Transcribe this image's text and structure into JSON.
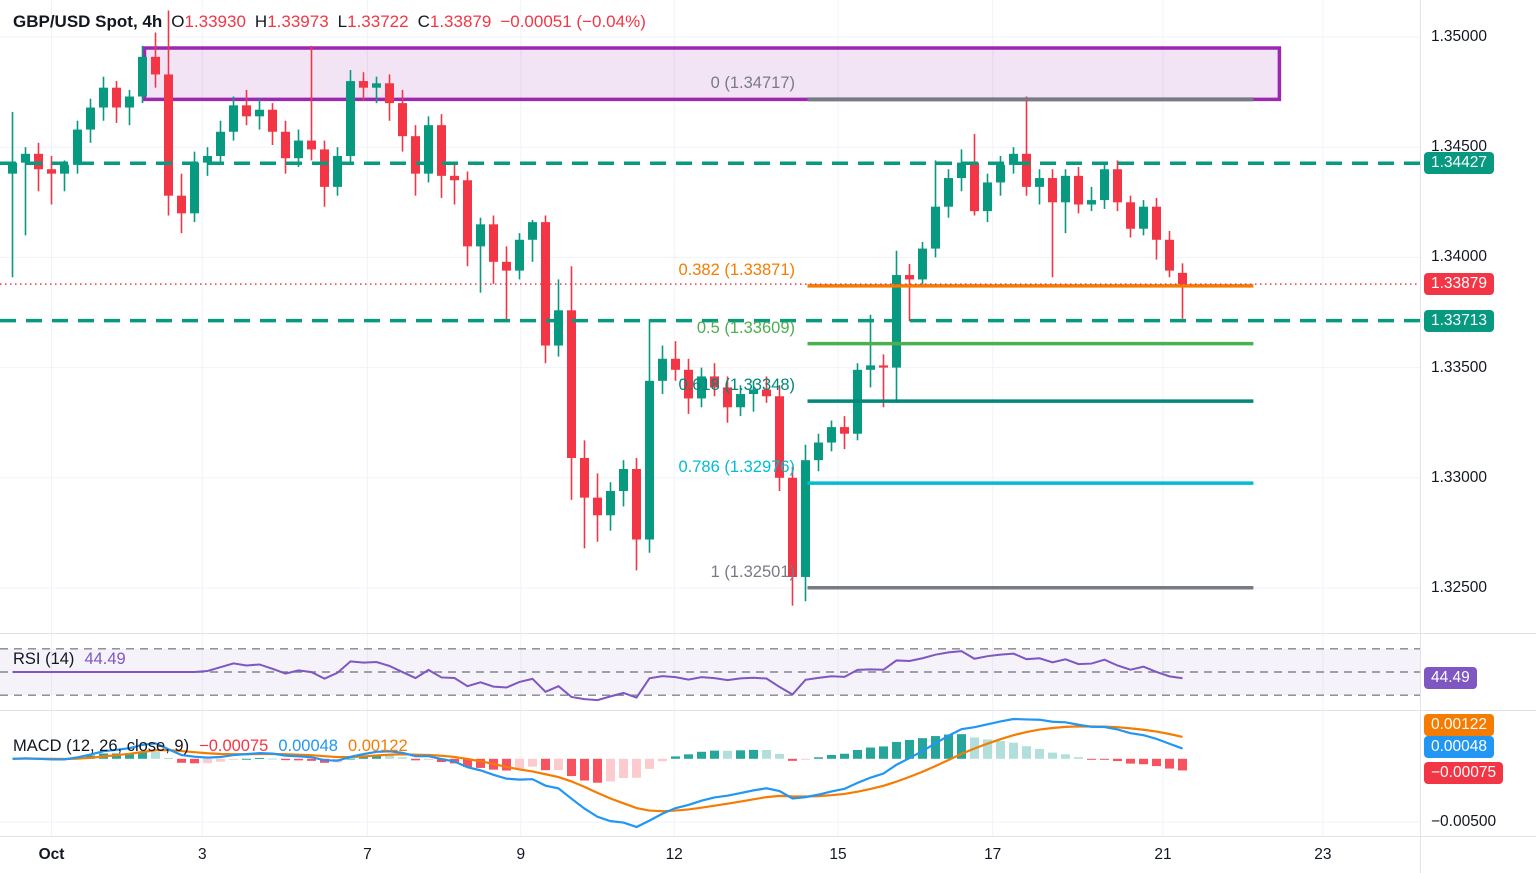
{
  "header": {
    "symbol": "GBP/USD Spot, 4h",
    "open_label": "O",
    "open": "1.33930",
    "high_label": "H",
    "high": "1.33973",
    "low_label": "L",
    "low": "1.33722",
    "close_label": "C",
    "close": "1.33879",
    "change": "−0.00051 (−0.04%)"
  },
  "colors": {
    "up": "#089981",
    "down": "#f23645",
    "grid": "#f0f3fa",
    "separator": "#e0e3eb",
    "axis_text": "#131722",
    "zone_border": "#9c27b0",
    "zone_fill": "rgba(156,39,176,0.13)",
    "rsi_line": "#7e57c2",
    "rsi_band": "rgba(126,87,194,0.08)",
    "rsi_dash": "#82858e",
    "macd_line": "#2196f3",
    "signal_line": "#f57c00",
    "hist_up_grow": "#26a69a",
    "hist_up_fall": "#b2dfdb",
    "hist_dn_fall": "#f7525f",
    "hist_dn_grow": "#fccbcd"
  },
  "chart_data": {
    "type": "candlestick",
    "symbol": "GBP/USD Spot",
    "interval": "4h",
    "price_axis": {
      "ticks": [
        "1.35000",
        "1.34500",
        "1.34000",
        "1.33500",
        "1.33000",
        "1.32500"
      ],
      "tick_values": [
        1.35,
        1.345,
        1.34,
        1.335,
        1.33,
        1.325
      ]
    },
    "time_axis": {
      "ticks": [
        {
          "label": "Oct",
          "bar": 3,
          "bold": true
        },
        {
          "label": "3",
          "bar": 14.6
        },
        {
          "label": "7",
          "bar": 27.3
        },
        {
          "label": "9",
          "bar": 39.1
        },
        {
          "label": "12",
          "bar": 50.9
        },
        {
          "label": "15",
          "bar": 63.5
        },
        {
          "label": "17",
          "bar": 75.4
        },
        {
          "label": "21",
          "bar": 88.5
        },
        {
          "label": "23",
          "bar": 100.8
        }
      ]
    },
    "candles": [
      [
        1.3438,
        1.3466,
        1.3391,
        1.3443
      ],
      [
        1.3443,
        1.345,
        1.341,
        1.3447
      ],
      [
        1.3447,
        1.3452,
        1.343,
        1.344
      ],
      [
        1.344,
        1.3446,
        1.3424,
        1.3438
      ],
      [
        1.3438,
        1.3444,
        1.343,
        1.3442
      ],
      [
        1.3442,
        1.3462,
        1.3438,
        1.3458
      ],
      [
        1.3458,
        1.3472,
        1.3452,
        1.3468
      ],
      [
        1.3468,
        1.3482,
        1.3462,
        1.3477
      ],
      [
        1.3477,
        1.348,
        1.3461,
        1.3468
      ],
      [
        1.3468,
        1.3476,
        1.346,
        1.3473
      ],
      [
        1.3473,
        1.3496,
        1.347,
        1.3491
      ],
      [
        1.3491,
        1.3502,
        1.3477,
        1.3483
      ],
      [
        1.3483,
        1.3512,
        1.3419,
        1.3428
      ],
      [
        1.3428,
        1.3438,
        1.3411,
        1.342
      ],
      [
        1.342,
        1.3448,
        1.3416,
        1.3443
      ],
      [
        1.3443,
        1.345,
        1.3437,
        1.3446
      ],
      [
        1.3446,
        1.3462,
        1.3442,
        1.3457
      ],
      [
        1.3457,
        1.3473,
        1.3453,
        1.3469
      ],
      [
        1.3469,
        1.3476,
        1.346,
        1.3464
      ],
      [
        1.3464,
        1.3472,
        1.3458,
        1.3467
      ],
      [
        1.3467,
        1.347,
        1.3451,
        1.3457
      ],
      [
        1.3457,
        1.3462,
        1.3438,
        1.3445
      ],
      [
        1.3445,
        1.3458,
        1.3441,
        1.3453
      ],
      [
        1.3453,
        1.3496,
        1.3444,
        1.3449
      ],
      [
        1.3449,
        1.3453,
        1.3423,
        1.3432
      ],
      [
        1.3432,
        1.345,
        1.3428,
        1.3446
      ],
      [
        1.3446,
        1.3485,
        1.3442,
        1.348
      ],
      [
        1.348,
        1.3484,
        1.3471,
        1.3477
      ],
      [
        1.3477,
        1.3482,
        1.347,
        1.3479
      ],
      [
        1.3479,
        1.3483,
        1.3462,
        1.347
      ],
      [
        1.347,
        1.3476,
        1.3448,
        1.3455
      ],
      [
        1.3455,
        1.346,
        1.3428,
        1.3438
      ],
      [
        1.3438,
        1.3464,
        1.3434,
        1.346
      ],
      [
        1.346,
        1.3465,
        1.3427,
        1.3437
      ],
      [
        1.3437,
        1.3442,
        1.3424,
        1.3435
      ],
      [
        1.3435,
        1.3439,
        1.3396,
        1.3405
      ],
      [
        1.3405,
        1.3418,
        1.3384,
        1.3415
      ],
      [
        1.3415,
        1.3419,
        1.3388,
        1.3398
      ],
      [
        1.3398,
        1.3405,
        1.3372,
        1.3394
      ],
      [
        1.3394,
        1.3411,
        1.339,
        1.3408
      ],
      [
        1.3408,
        1.3417,
        1.3398,
        1.3416
      ],
      [
        1.3416,
        1.3419,
        1.3352,
        1.336
      ],
      [
        1.336,
        1.339,
        1.3355,
        1.3376
      ],
      [
        1.3376,
        1.3396,
        1.329,
        1.3309
      ],
      [
        1.3309,
        1.3317,
        1.3268,
        1.3291
      ],
      [
        1.3291,
        1.3302,
        1.3271,
        1.3283
      ],
      [
        1.3283,
        1.3298,
        1.3276,
        1.3294
      ],
      [
        1.3294,
        1.3308,
        1.3287,
        1.3304
      ],
      [
        1.3304,
        1.3309,
        1.3258,
        1.3272
      ],
      [
        1.3272,
        1.3372,
        1.3266,
        1.3344
      ],
      [
        1.3344,
        1.336,
        1.3338,
        1.3354
      ],
      [
        1.3354,
        1.3362,
        1.3344,
        1.3349
      ],
      [
        1.3349,
        1.3354,
        1.3329,
        1.3336
      ],
      [
        1.3336,
        1.335,
        1.3332,
        1.3346
      ],
      [
        1.3346,
        1.3352,
        1.3337,
        1.3341
      ],
      [
        1.3341,
        1.3346,
        1.3325,
        1.3332
      ],
      [
        1.3332,
        1.3342,
        1.3328,
        1.3338
      ],
      [
        1.3338,
        1.3344,
        1.333,
        1.334
      ],
      [
        1.334,
        1.3346,
        1.3334,
        1.3337
      ],
      [
        1.3337,
        1.3342,
        1.3294,
        1.33
      ],
      [
        1.33,
        1.3305,
        1.3242,
        1.3255
      ],
      [
        1.3255,
        1.3315,
        1.3244,
        1.3308
      ],
      [
        1.3308,
        1.332,
        1.3303,
        1.3316
      ],
      [
        1.3316,
        1.3326,
        1.3312,
        1.3323
      ],
      [
        1.3323,
        1.3328,
        1.3313,
        1.332
      ],
      [
        1.332,
        1.3352,
        1.3317,
        1.3349
      ],
      [
        1.3349,
        1.3374,
        1.3341,
        1.3351
      ],
      [
        1.3351,
        1.3356,
        1.3332,
        1.335
      ],
      [
        1.335,
        1.3403,
        1.3334,
        1.3392
      ],
      [
        1.3392,
        1.3397,
        1.3371,
        1.339
      ],
      [
        1.339,
        1.3407,
        1.3387,
        1.3404
      ],
      [
        1.3404,
        1.3444,
        1.34,
        1.3423
      ],
      [
        1.3423,
        1.344,
        1.3418,
        1.3436
      ],
      [
        1.3436,
        1.3449,
        1.343,
        1.3443
      ],
      [
        1.3443,
        1.3456,
        1.3419,
        1.3421
      ],
      [
        1.3421,
        1.3438,
        1.3416,
        1.3434
      ],
      [
        1.3434,
        1.3446,
        1.3428,
        1.3442
      ],
      [
        1.3442,
        1.345,
        1.3438,
        1.3447
      ],
      [
        1.3447,
        1.3473,
        1.3428,
        1.3432
      ],
      [
        1.3432,
        1.344,
        1.3424,
        1.3436
      ],
      [
        1.3436,
        1.344,
        1.3391,
        1.3425
      ],
      [
        1.3425,
        1.344,
        1.3411,
        1.3437
      ],
      [
        1.3437,
        1.3441,
        1.342,
        1.3424
      ],
      [
        1.3424,
        1.3432,
        1.3421,
        1.3426
      ],
      [
        1.3426,
        1.3442,
        1.3422,
        1.344
      ],
      [
        1.344,
        1.3444,
        1.3421,
        1.3425
      ],
      [
        1.3425,
        1.3428,
        1.3409,
        1.3413
      ],
      [
        1.3413,
        1.3426,
        1.341,
        1.3423
      ],
      [
        1.3423,
        1.3427,
        1.3399,
        1.3408
      ],
      [
        1.3408,
        1.3412,
        1.3391,
        1.3394
      ],
      [
        1.3393,
        1.33973,
        1.33722,
        1.33879
      ]
    ],
    "fib_levels": [
      {
        "label": "0 (1.34717)",
        "ratio": 0,
        "value": 1.34717,
        "color": "#787b86"
      },
      {
        "label": "0.382 (1.33871)",
        "ratio": 0.382,
        "value": 1.33871,
        "color": "#f57c00"
      },
      {
        "label": "0.5 (1.33609)",
        "ratio": 0.5,
        "value": 1.33609,
        "color": "#4caf50"
      },
      {
        "label": "0.618 (1.33348)",
        "ratio": 0.618,
        "value": 1.33348,
        "color": "#00897b"
      },
      {
        "label": "0.786 (1.32976)",
        "ratio": 0.786,
        "value": 1.32976,
        "color": "#00bcd4"
      },
      {
        "label": "1 (1.32501)",
        "ratio": 1,
        "value": 1.32501,
        "color": "#787b86"
      }
    ],
    "fib_span": {
      "start_bar": 61.5,
      "end_bar": 95.8
    },
    "zone": {
      "top": 1.3495,
      "bottom": 1.34717,
      "start_bar": 10.5,
      "end_bar": 97.8
    },
    "price_lines": [
      {
        "value": 1.34427,
        "label": "1.34427",
        "style": "dashed",
        "color": "#089981"
      },
      {
        "value": 1.33713,
        "label": "1.33713",
        "style": "dashed",
        "color": "#089981"
      },
      {
        "value": 1.33879,
        "label": "1.33879",
        "style": "dotted",
        "color": "#f23645"
      }
    ],
    "rsi": {
      "title": "RSI (14)",
      "period": 14,
      "value": "44.49",
      "value_num": 44.49,
      "levels": [
        70,
        50,
        30
      ],
      "color": "#7e57c2"
    },
    "macd": {
      "title": "MACD (12, 26, close, 9)",
      "hist_value": "−0.00075",
      "macd_value": "0.00048",
      "signal_value": "0.00122",
      "hist_num": -0.00075,
      "macd_num": 0.00048,
      "signal_num": 0.00122,
      "axis_label": "−0.00500",
      "axis_label_value": -0.005
    }
  }
}
